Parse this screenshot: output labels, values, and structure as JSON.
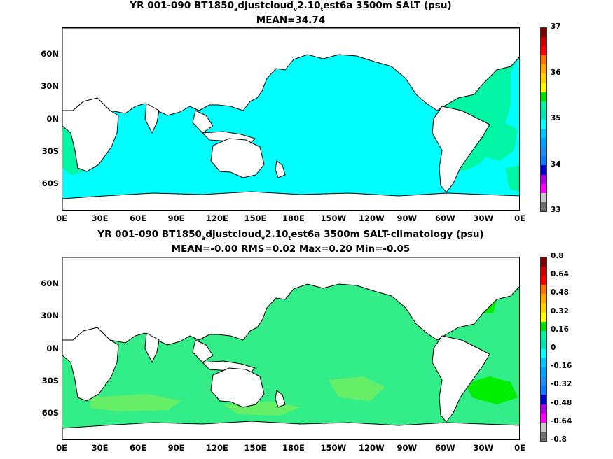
{
  "panels": [
    {
      "title_parts": [
        "YR 001-090 BT1850",
        "a",
        "djustcloud",
        "v",
        "2.10",
        "t",
        "est6a 3500m SALT (psu)"
      ],
      "subtitle": "MEAN=34.74",
      "base_color": "#00ffff",
      "patch_colors": [
        "#00f5a5",
        "#00f5a5",
        "#00f5a5",
        "#00f5a5",
        "#00f5a5"
      ],
      "colorbar": {
        "colors": [
          "#6e6e6e",
          "#c8c8c8",
          "#ff00ff",
          "#aa00dd",
          "#0000c8",
          "#1478ff",
          "#1e8cf0",
          "#00a0ff",
          "#00c8ff",
          "#00ffff",
          "#00e6b4",
          "#00f5a5",
          "#00dd00",
          "#ffff00",
          "#ffd200",
          "#ffaa00",
          "#ff7800",
          "#ff0000",
          "#c80000",
          "#780000"
        ],
        "labels": [
          "37",
          "36",
          "35",
          "34",
          "33"
        ]
      }
    },
    {
      "title_parts": [
        "YR 001-090 BT1850",
        "a",
        "djustcloud",
        "v",
        "2.10",
        "t",
        "est6a 3500m SALT-climatology (psu)"
      ],
      "subtitle": "MEAN=-0.00   RMS=0.02   Max=0.20   Min=-0.05",
      "base_color": "#33ee88",
      "patch_colors": [
        "#66ee66",
        "#66ee66",
        "#66ee66",
        "#00ee00",
        "#00ee00"
      ],
      "colorbar": {
        "colors": [
          "#6e6e6e",
          "#c8c8c8",
          "#ff00ff",
          "#aa00dd",
          "#0000c8",
          "#1478ff",
          "#1e8cf0",
          "#00a0ff",
          "#00c8ff",
          "#00ffff",
          "#00e6b4",
          "#00f5a5",
          "#00dd00",
          "#ffff00",
          "#ffd200",
          "#ffaa00",
          "#ff7800",
          "#ff0000",
          "#c80000",
          "#780000"
        ],
        "labels": [
          "0.8",
          "0.64",
          "0.48",
          "0.32",
          "0.16",
          "0",
          "-0.16",
          "-0.32",
          "-0.48",
          "-0.64",
          "-0.8"
        ]
      }
    }
  ],
  "lon_labels": [
    "0E",
    "30E",
    "60E",
    "90E",
    "120E",
    "150E",
    "180E",
    "150W",
    "120W",
    "90W",
    "60W",
    "30W",
    "0E"
  ],
  "lat_labels": [
    "60N",
    "30N",
    "0N",
    "30S",
    "60S"
  ]
}
